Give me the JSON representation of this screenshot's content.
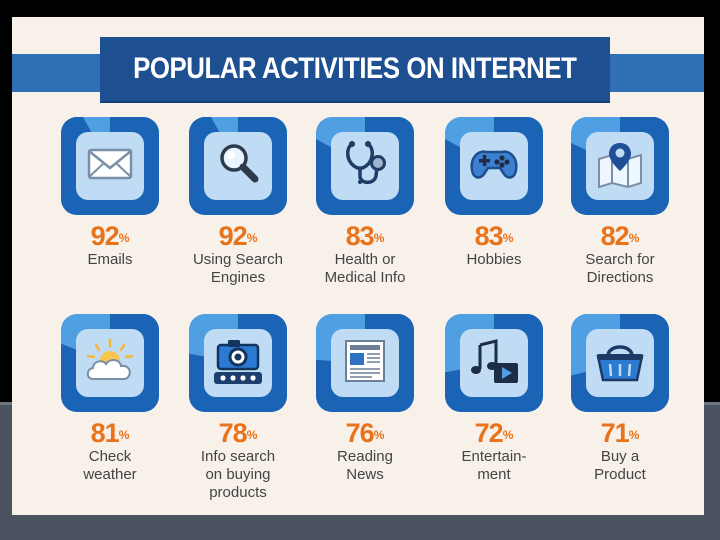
{
  "colors": {
    "background": "#000000",
    "sheet": "#f7f1ea",
    "banner": "#1e4f91",
    "banner_wing": "#2f6fb6",
    "tile_light": "#4f9fe2",
    "tile_dark": "#1a63b5",
    "tile_inner": "#bfdcf4",
    "percent": "#e8731a",
    "label": "#444444"
  },
  "chart_data": {
    "type": "table",
    "title": "POPULAR ACTIVITIES ON INTERNET",
    "unit": "%",
    "items": [
      {
        "value": 92,
        "label": "Emails",
        "icon": "envelope-icon"
      },
      {
        "value": 92,
        "label": "Using Search\nEngines",
        "icon": "magnifier-icon"
      },
      {
        "value": 83,
        "label": "Health or\nMedical Info",
        "icon": "stethoscope-icon"
      },
      {
        "value": 83,
        "label": "Hobbies",
        "icon": "gamepad-icon"
      },
      {
        "value": 82,
        "label": "Search for\nDirections",
        "icon": "map-pin-icon"
      },
      {
        "value": 81,
        "label": "Check\nweather",
        "icon": "cloud-sun-icon"
      },
      {
        "value": 78,
        "label": "Info search\non buying\nproducts",
        "icon": "camera-rating-icon"
      },
      {
        "value": 76,
        "label": "Reading\nNews",
        "icon": "newspaper-icon"
      },
      {
        "value": 72,
        "label": "Entertain-\nment",
        "icon": "music-video-icon"
      },
      {
        "value": 71,
        "label": "Buy a\nProduct",
        "icon": "basket-icon"
      }
    ]
  }
}
